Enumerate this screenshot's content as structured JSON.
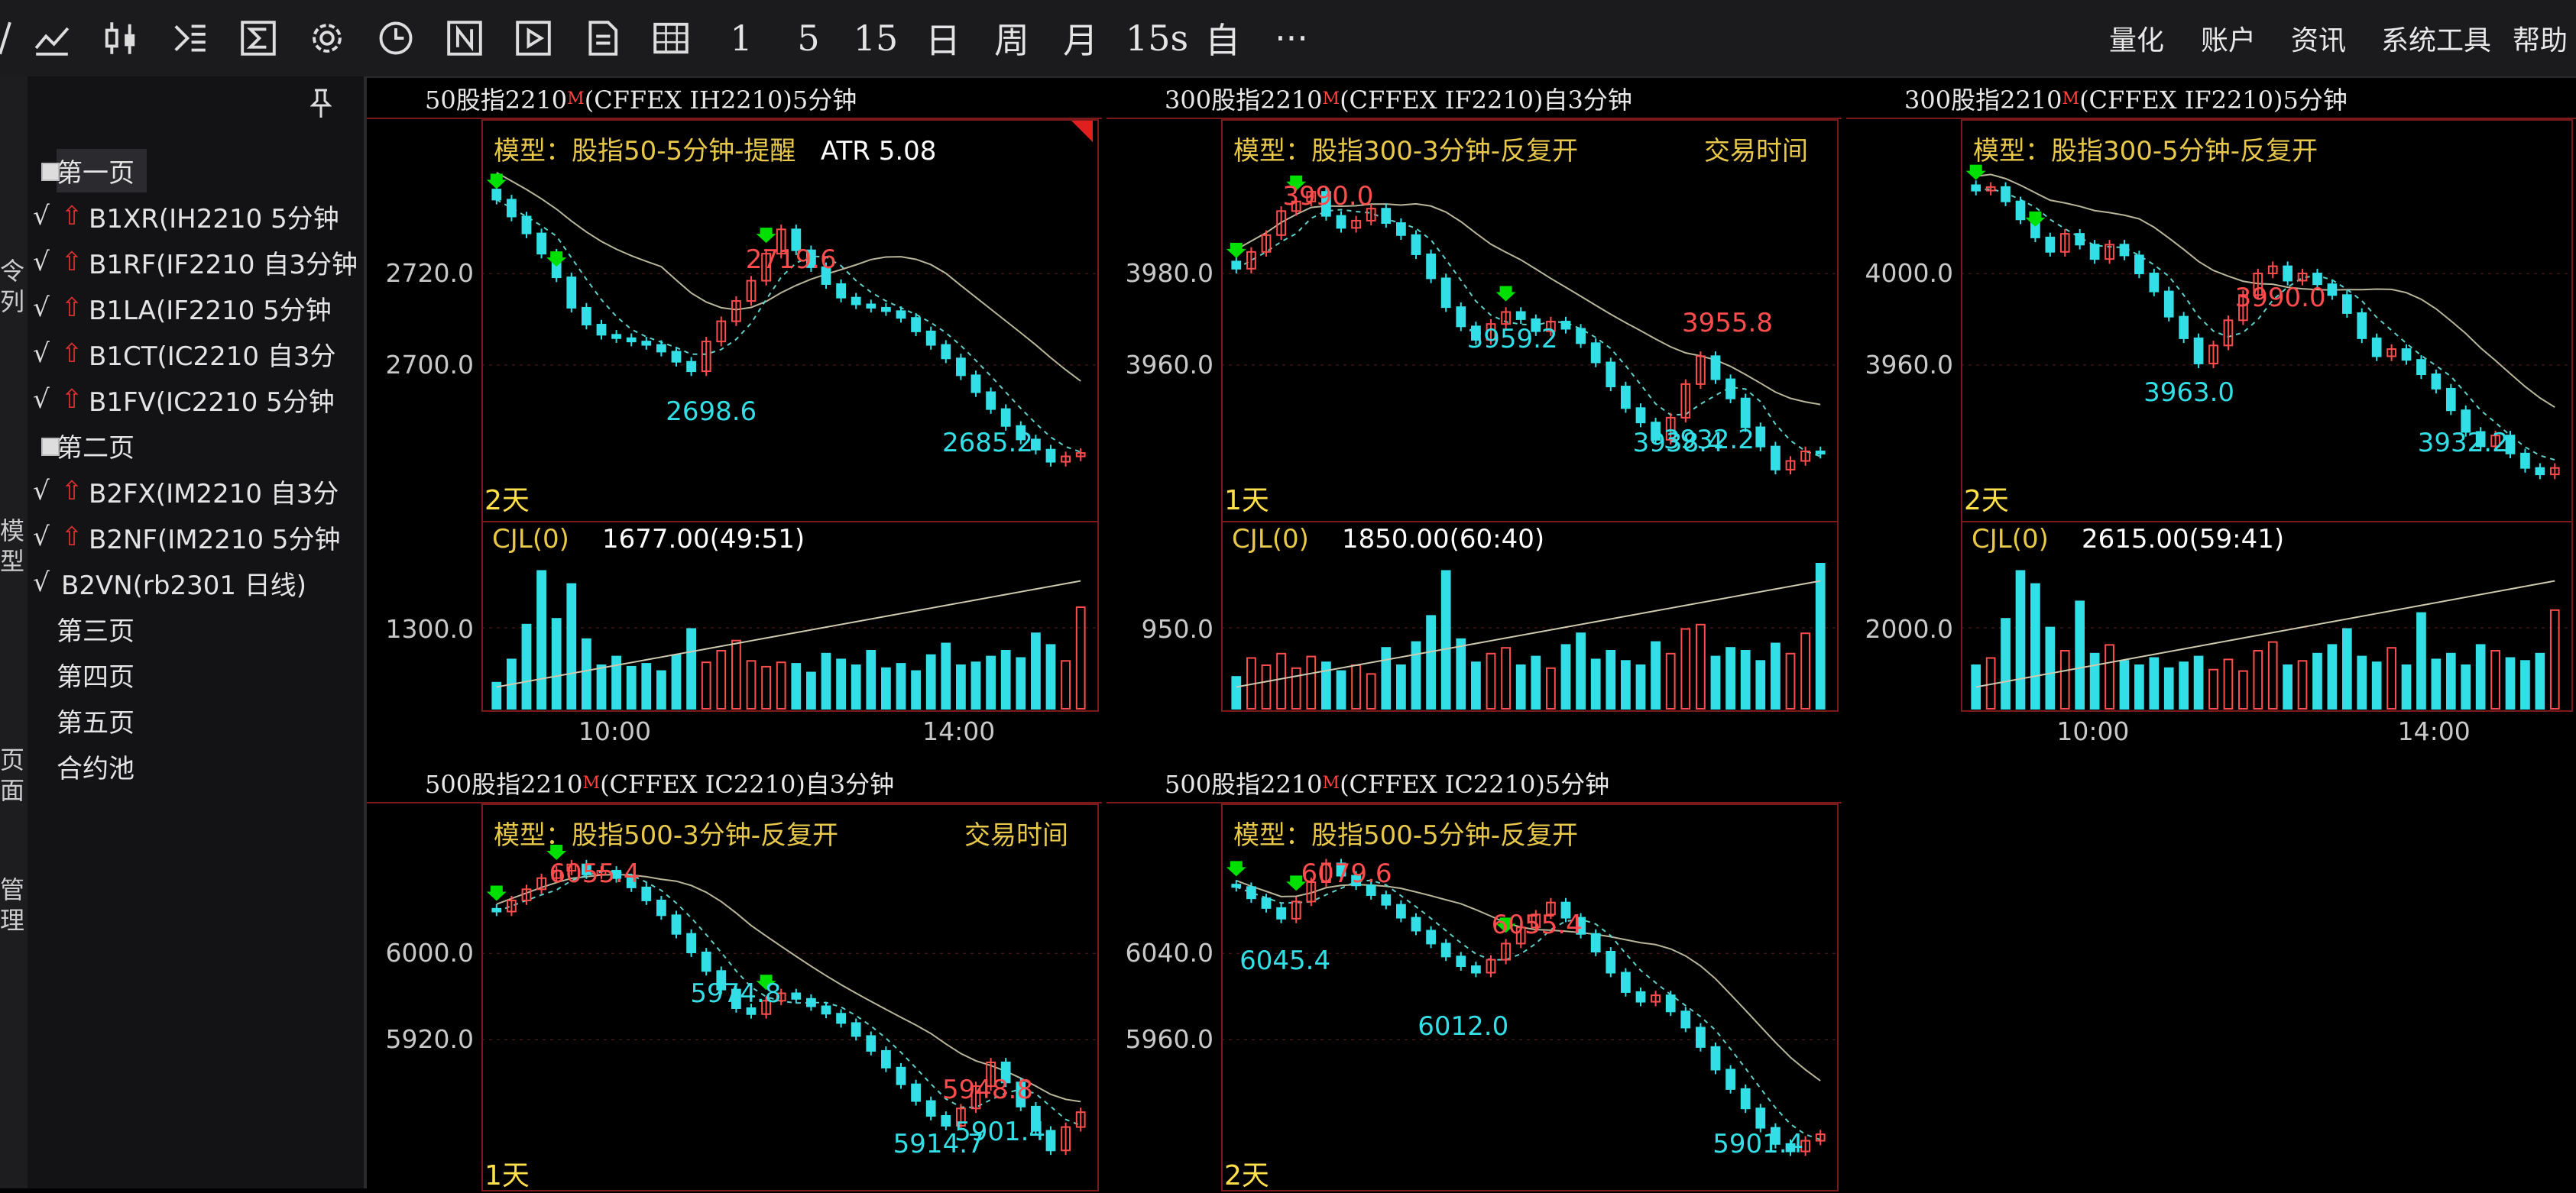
{
  "toolbar": {
    "text_buttons": [
      "1",
      "5",
      "15",
      "日",
      "周",
      "月",
      "15s",
      "自",
      "···"
    ],
    "menu": [
      "量化",
      "账户",
      "资讯",
      "系统工具",
      "帮助"
    ]
  },
  "sidebar": {
    "groups": [
      {
        "title": "第一页",
        "items": [
          {
            "check": "√",
            "label": "B1XR(IH2210 5分钟"
          },
          {
            "check": "√",
            "label": "B1RF(IF2210 自3分钟"
          },
          {
            "check": "√",
            "label": "B1LA(IF2210 5分钟"
          },
          {
            "check": "√",
            "label": "B1CT(IC2210 自3分"
          },
          {
            "check": "√",
            "label": "B1FV(IC2210 5分钟"
          }
        ]
      },
      {
        "title": "第二页",
        "items": [
          {
            "check": "√",
            "label": "B2FX(IM2210 自3分"
          },
          {
            "check": "√",
            "label": "B2NF(IM2210 5分钟"
          },
          {
            "check": "√",
            "label": "B2VN(rb2301 日线)"
          }
        ]
      }
    ],
    "pages": [
      "第三页",
      "第四页",
      "第五页",
      "合约池"
    ],
    "strip_chars": [
      "令",
      "列",
      "模",
      "型",
      "页",
      "面",
      "管",
      "理"
    ]
  },
  "panels": [
    {
      "title": "50股指2210",
      "title_sup": "M",
      "title_tail": " (CFFEX IH2210)5分钟",
      "model": "模型：股指50-5分钟-提醒",
      "atr": "ATR 5.08",
      "trade_time": "",
      "days": "2天",
      "cjl_label": "CJL(0)",
      "cjl_value": "1677.00(49:51)",
      "y_labels": [
        "2720.0",
        "2700.0"
      ],
      "vol_label": "1300.0",
      "x_labels": [
        "10:00",
        "14:00"
      ],
      "annotations": [
        {
          "text": "2719.6",
          "color": "red"
        },
        {
          "text": "2698.6",
          "color": "cyan"
        },
        {
          "text": "2685.2",
          "color": "cyan"
        }
      ],
      "closes": [
        2724.0,
        2721.5,
        2719.0,
        2716.0,
        2712.5,
        2708.0,
        2705.5,
        2704.0,
        2703.5,
        2703.0,
        2702.5,
        2701.5,
        2700.0,
        2698.6,
        2703.0,
        2706.0,
        2709.0,
        2712.0,
        2716.0,
        2719.6,
        2716.5,
        2714.0,
        2711.5,
        2709.5,
        2708.5,
        2708.0,
        2707.5,
        2706.5,
        2704.5,
        2702.5,
        2700.5,
        2698.0,
        2695.5,
        2693.0,
        2690.5,
        2688.5,
        2687.0,
        2685.2,
        2686.0,
        2686.5
      ],
      "volumes": [
        0.18,
        0.34,
        0.58,
        0.95,
        0.62,
        0.86,
        0.48,
        0.3,
        0.36,
        0.29,
        0.31,
        0.26,
        0.37,
        0.55,
        0.32,
        0.4,
        0.47,
        0.33,
        0.29,
        0.32,
        0.31,
        0.25,
        0.38,
        0.34,
        0.3,
        0.4,
        0.28,
        0.31,
        0.26,
        0.37,
        0.45,
        0.3,
        0.32,
        0.36,
        0.4,
        0.35,
        0.52,
        0.44,
        0.33,
        0.7
      ]
    },
    {
      "title": "300股指2210",
      "title_sup": "M",
      "title_tail": " (CFFEX IF2210)自3分钟",
      "model": "模型：股指300-3分钟-反复开",
      "atr": "",
      "trade_time": "交易时间",
      "days": "1天",
      "cjl_label": "CJL(0)",
      "cjl_value": "1850.00(60:40)",
      "y_labels": [
        "3980.0",
        "3960.0"
      ],
      "vol_label": "950.0",
      "x_labels": [],
      "annotations": [
        {
          "text": "3990.0",
          "color": "red"
        },
        {
          "text": "3959.2",
          "color": "cyan"
        },
        {
          "text": "3955.8",
          "color": "red"
        },
        {
          "text": "3938.4",
          "color": "cyan"
        },
        {
          "text": "3932.2",
          "color": "cyan"
        }
      ],
      "closes": [
        3974.0,
        3977.5,
        3981.0,
        3986.0,
        3988.0,
        3990.0,
        3985.0,
        3982.5,
        3984.0,
        3986.5,
        3983.5,
        3981.0,
        3977.0,
        3972.0,
        3966.0,
        3962.0,
        3959.2,
        3962.5,
        3965.0,
        3963.5,
        3961.0,
        3963.0,
        3961.5,
        3958.5,
        3954.5,
        3949.5,
        3945.0,
        3942.0,
        3938.4,
        3943.0,
        3950.0,
        3955.8,
        3951.0,
        3947.0,
        3941.0,
        3937.0,
        3932.2,
        3934.0,
        3936.0,
        3935.5
      ],
      "volumes": [
        0.22,
        0.35,
        0.3,
        0.38,
        0.28,
        0.36,
        0.32,
        0.26,
        0.3,
        0.24,
        0.42,
        0.3,
        0.46,
        0.64,
        0.95,
        0.48,
        0.32,
        0.38,
        0.42,
        0.3,
        0.36,
        0.28,
        0.44,
        0.52,
        0.34,
        0.4,
        0.33,
        0.3,
        0.46,
        0.38,
        0.55,
        0.58,
        0.36,
        0.42,
        0.4,
        0.33,
        0.45,
        0.38,
        0.52,
        1.0
      ]
    },
    {
      "title": "300股指2210",
      "title_sup": "M",
      "title_tail": " (CFFEX IF2210)5分钟",
      "model": "模型：股指300-5分钟-反复开",
      "atr": "",
      "trade_time": "",
      "days": "2天",
      "cjl_label": "CJL(0)",
      "cjl_value": "2615.00(59:41)",
      "y_labels": [
        "4000.0",
        "3960.0"
      ],
      "vol_label": "2000.0",
      "x_labels": [
        "10:00",
        "14:00"
      ],
      "annotations": [
        {
          "text": "3990.0",
          "color": "red"
        },
        {
          "text": "3963.0",
          "color": "cyan"
        },
        {
          "text": "3932.2",
          "color": "cyan"
        }
      ],
      "closes": [
        4011.0,
        4012.0,
        4008.0,
        4003.0,
        3998.0,
        3994.0,
        3999.0,
        3996.0,
        3992.0,
        3996.0,
        3993.0,
        3988.0,
        3983.0,
        3976.0,
        3970.0,
        3963.0,
        3968.0,
        3975.0,
        3982.0,
        3988.0,
        3990.0,
        3986.0,
        3988.0,
        3985.0,
        3982.0,
        3977.0,
        3970.0,
        3965.0,
        3967.0,
        3964.0,
        3960.0,
        3956.0,
        3950.0,
        3944.0,
        3940.0,
        3943.0,
        3938.0,
        3934.0,
        3932.2,
        3934.0
      ],
      "volumes": [
        0.3,
        0.35,
        0.62,
        0.95,
        0.86,
        0.56,
        0.4,
        0.74,
        0.38,
        0.44,
        0.33,
        0.3,
        0.35,
        0.28,
        0.32,
        0.36,
        0.27,
        0.34,
        0.26,
        0.4,
        0.46,
        0.3,
        0.33,
        0.38,
        0.44,
        0.55,
        0.36,
        0.32,
        0.42,
        0.3,
        0.66,
        0.34,
        0.38,
        0.3,
        0.44,
        0.4,
        0.35,
        0.33,
        0.38,
        0.68
      ]
    },
    {
      "title": "500股指2210",
      "title_sup": "M",
      "title_tail": " (CFFEX IC2210)自3分钟",
      "model": "模型：股指500-3分钟-反复开",
      "atr": "",
      "trade_time": "交易时间",
      "days": "1天",
      "cjl_label": "",
      "cjl_value": "",
      "y_labels": [
        "6000.0",
        "5920.0"
      ],
      "vol_label": "",
      "x_labels": [],
      "annotations": [
        {
          "text": "6055.4",
          "color": "red"
        },
        {
          "text": "5974.8",
          "color": "cyan"
        },
        {
          "text": "5948.8",
          "color": "red"
        },
        {
          "text": "5914.7",
          "color": "cyan"
        },
        {
          "text": "5901.4",
          "color": "cyan"
        }
      ],
      "closes": [
        6030.0,
        6036.0,
        6042.0,
        6048.0,
        6052.0,
        6055.4,
        6050.0,
        6052.0,
        6048.0,
        6043.0,
        6036.0,
        6028.0,
        6018.0,
        6008.0,
        5998.0,
        5988.0,
        5978.0,
        5974.8,
        5982.0,
        5986.0,
        5983.0,
        5979.0,
        5975.0,
        5970.0,
        5963.0,
        5955.0,
        5946.0,
        5937.0,
        5928.0,
        5920.0,
        5914.7,
        5924.0,
        5936.0,
        5948.8,
        5938.0,
        5925.0,
        5912.0,
        5901.4,
        5914.0,
        5922.0
      ],
      "volumes": []
    },
    {
      "title": "500股指2210",
      "title_sup": "M",
      "title_tail": " (CFFEX IC2210)5分钟",
      "model": "模型：股指500-5分钟-反复开",
      "atr": "",
      "trade_time": "",
      "days": "2天",
      "cjl_label": "",
      "cjl_value": "",
      "y_labels": [
        "6040.0",
        "5960.0"
      ],
      "vol_label": "",
      "x_labels": [],
      "annotations": [
        {
          "text": "6079.6",
          "color": "red"
        },
        {
          "text": "6045.4",
          "color": "cyan"
        },
        {
          "text": "6012.0",
          "color": "cyan"
        },
        {
          "text": "6055.4",
          "color": "red"
        },
        {
          "text": "5901.4",
          "color": "cyan"
        }
      ],
      "closes": [
        6065.0,
        6058.0,
        6052.0,
        6045.4,
        6056.0,
        6068.0,
        6079.6,
        6072.0,
        6066.0,
        6060.0,
        6054.0,
        6046.0,
        6038.0,
        6030.0,
        6022.0,
        6016.0,
        6012.0,
        6020.0,
        6030.0,
        6040.0,
        6048.0,
        6055.4,
        6046.0,
        6036.0,
        6025.0,
        6012.0,
        6000.0,
        5994.0,
        5998.0,
        5988.0,
        5978.0,
        5966.0,
        5952.0,
        5940.0,
        5928.0,
        5916.0,
        5906.0,
        5901.4,
        5908.0,
        5912.0
      ],
      "volumes": []
    }
  ],
  "colors": {
    "up": "#ff4d4d",
    "down": "#33dfe6",
    "border": "#7a1a1a",
    "ma_slow": "#b9b59a",
    "ma_fast": "#5fcfc9",
    "signal": "#00e000",
    "model_text": "#e8c84a"
  }
}
